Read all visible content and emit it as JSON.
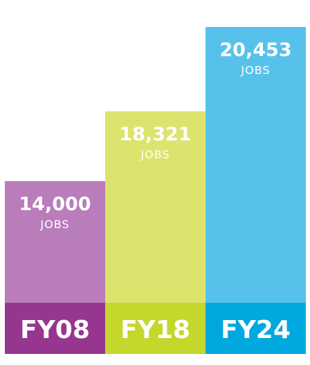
{
  "chart_data": {
    "type": "bar",
    "categories": [
      "FY08",
      "FY18",
      "FY24"
    ],
    "values": [
      14000,
      18321,
      20453
    ],
    "value_labels": [
      "14,000",
      "18,321",
      "20,453"
    ],
    "unit_label": "JOBS",
    "title": "",
    "xlabel": "",
    "ylabel": "",
    "grid": false,
    "legend": "none",
    "colors": {
      "bars": [
        "#B97DBB",
        "#DCE46E",
        "#56C2EC"
      ],
      "bands": [
        "#96368E",
        "#C5D62D",
        "#00A8E0"
      ],
      "text": "#ffffff"
    }
  }
}
